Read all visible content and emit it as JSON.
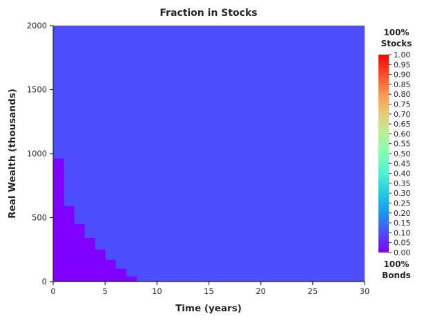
{
  "chart_data": {
    "type": "heatmap",
    "title": "Fraction in Stocks",
    "xlabel": "Time (years)",
    "ylabel": "Real Wealth (thousands)",
    "xlim": [
      0,
      30
    ],
    "ylim": [
      0,
      2000
    ],
    "xticks": [
      0,
      5,
      10,
      15,
      20,
      25,
      30
    ],
    "yticks": [
      0,
      500,
      1000,
      1500,
      2000
    ],
    "background_value": 0.1,
    "low_region_value": 0.0,
    "low_region_steps": [
      {
        "x0": 0,
        "x1": 1,
        "y_top": 960
      },
      {
        "x0": 1,
        "x1": 2,
        "y_top": 590
      },
      {
        "x0": 2,
        "x1": 3,
        "y_top": 450
      },
      {
        "x0": 3,
        "x1": 4,
        "y_top": 340
      },
      {
        "x0": 4,
        "x1": 5,
        "y_top": 250
      },
      {
        "x0": 5,
        "x1": 6,
        "y_top": 170
      },
      {
        "x0": 6,
        "x1": 7,
        "y_top": 100
      },
      {
        "x0": 7,
        "x1": 8,
        "y_top": 40
      }
    ],
    "colorbar": {
      "colormap": "rainbow",
      "range": [
        0.0,
        1.0
      ],
      "ticks": [
        "0.00",
        "0.05",
        "0.10",
        "0.15",
        "0.20",
        "0.25",
        "0.30",
        "0.35",
        "0.40",
        "0.45",
        "0.50",
        "0.55",
        "0.60",
        "0.65",
        "0.70",
        "0.75",
        "0.80",
        "0.85",
        "0.90",
        "0.95",
        "1.00"
      ],
      "top_label_line1": "100%",
      "top_label_line2": "Stocks",
      "bottom_label_line1": "100%",
      "bottom_label_line2": "Bonds"
    },
    "colors": {
      "background": "#4e4dfe",
      "low_region": "#7f00ff",
      "axis": "#262626"
    }
  }
}
